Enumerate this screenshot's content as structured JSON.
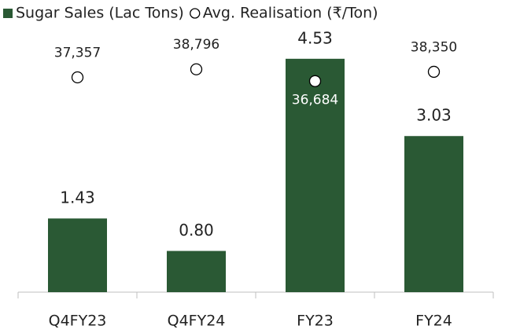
{
  "chart_data": {
    "type": "bar",
    "categories": [
      "Q4FY23",
      "Q4FY24",
      "FY23",
      "FY24"
    ],
    "series": [
      {
        "name": "Sugar Sales (Lac Tons)",
        "type": "bar",
        "color": "#2a5934",
        "values": [
          1.43,
          0.8,
          4.53,
          3.03
        ],
        "value_labels": [
          "1.43",
          "0.80",
          "4.53",
          "3.03"
        ]
      },
      {
        "name": "Avg. Realisation (₹/Ton)",
        "type": "scatter",
        "color": "#ffffff",
        "axis": "y2",
        "values": [
          37357,
          38796,
          36684,
          38350
        ],
        "value_labels": [
          "37,357",
          "38,796",
          "36,684",
          "38,350"
        ]
      }
    ],
    "ylim": [
      0,
      5
    ],
    "y2lim": [
      -1000,
      45000
    ],
    "legend": "top"
  }
}
